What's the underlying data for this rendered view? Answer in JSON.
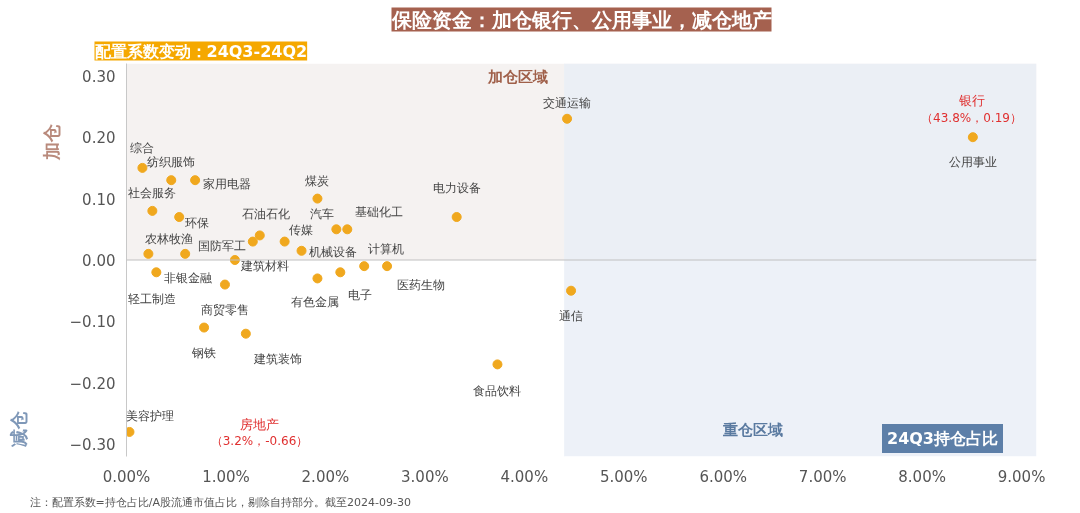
{
  "chart_data": {
    "type": "scatter",
    "title": "保险资金：加仓银行、公用事业，减仓地产",
    "xlabel": "24Q3持仓占比",
    "ylabel": "配置系数变动：24Q3-24Q2",
    "x": [
      0.16,
      0.45,
      0.69,
      0.26,
      0.53,
      1.27,
      1.34,
      1.92,
      1.59,
      1.76,
      2.11,
      2.22,
      2.39,
      2.62,
      0.22,
      0.59,
      1.09,
      0.3,
      2.15,
      1.92,
      0.99,
      0.78,
      1.2,
      0.03,
      3.32,
      4.43,
      4.47,
      3.73,
      8.51
    ],
    "values": [
      0.15,
      0.13,
      0.13,
      0.08,
      0.07,
      0.03,
      0.04,
      0.1,
      0.03,
      0.015,
      0.05,
      0.05,
      -0.01,
      -0.01,
      0.01,
      0.01,
      0.0,
      -0.02,
      -0.02,
      -0.03,
      -0.04,
      -0.11,
      -0.12,
      -0.28,
      0.07,
      0.23,
      -0.05,
      -0.17,
      0.2
    ],
    "color": "#f0a81e",
    "marker": "circle",
    "grid": false,
    "xlim": [
      0,
      9.15
    ],
    "ylim": [
      -0.32,
      0.32
    ],
    "xticks": [
      {
        "value": 0,
        "label": "0.00%"
      },
      {
        "value": 1,
        "label": "1.00%"
      },
      {
        "value": 2,
        "label": "2.00%"
      },
      {
        "value": 3,
        "label": "3.00%"
      },
      {
        "value": 4,
        "label": "4.00%"
      },
      {
        "value": 5,
        "label": "5.00%"
      },
      {
        "value": 6,
        "label": "6.00%"
      },
      {
        "value": 7,
        "label": "7.00%"
      },
      {
        "value": 8,
        "label": "8.00%"
      },
      {
        "value": 9,
        "label": "9.00%"
      }
    ],
    "yticks": [
      {
        "value": -0.3,
        "label": "−0.30"
      },
      {
        "value": -0.2,
        "label": "−0.20"
      },
      {
        "value": -0.1,
        "label": "−0.10"
      },
      {
        "value": 0,
        "label": "0.00"
      },
      {
        "value": 0.1,
        "label": "0.10"
      },
      {
        "value": 0.2,
        "label": "0.20"
      },
      {
        "value": 0.3,
        "label": "0.30"
      }
    ],
    "ref_lines": [
      {
        "axis": "y",
        "value": 0,
        "color": "#c0c0c0"
      }
    ],
    "bands": [
      {
        "axis": "y",
        "from": 0,
        "to": 0.32,
        "label": "加仓区域",
        "color": "#f3efee"
      },
      {
        "axis": "x",
        "from": 4.4,
        "to": 9.15,
        "label": "重仓区域",
        "color": "#e9eef6"
      }
    ],
    "annotations": [
      {
        "text": "综合",
        "x": 0.16,
        "y": 0.15
      },
      {
        "text": "纺织服饰",
        "x": 0.45,
        "y": 0.13
      },
      {
        "text": "家用电器",
        "x": 0.69,
        "y": 0.13
      },
      {
        "text": "社会服务",
        "x": 0.26,
        "y": 0.08
      },
      {
        "text": "环保",
        "x": 0.53,
        "y": 0.07
      },
      {
        "text": "国防军工",
        "x": 1.27,
        "y": 0.03
      },
      {
        "text": "石油石化",
        "x": 1.34,
        "y": 0.04
      },
      {
        "text": "煤炭",
        "x": 1.92,
        "y": 0.1
      },
      {
        "text": "传媒",
        "x": 1.59,
        "y": 0.03
      },
      {
        "text": "机械设备",
        "x": 1.76,
        "y": 0.015
      },
      {
        "text": "汽车",
        "x": 2.11,
        "y": 0.05
      },
      {
        "text": "基础化工",
        "x": 2.22,
        "y": 0.05
      },
      {
        "text": "计算机",
        "x": 2.39,
        "y": -0.01
      },
      {
        "text": "医药生物",
        "x": 2.62,
        "y": -0.01
      },
      {
        "text": "农林牧渔",
        "x": 0.22,
        "y": 0.01
      },
      {
        "text": "非银金融",
        "x": 0.59,
        "y": 0.01
      },
      {
        "text": "建筑材料",
        "x": 1.09,
        "y": 0.0
      },
      {
        "text": "轻工制造",
        "x": 0.3,
        "y": -0.02
      },
      {
        "text": "电子",
        "x": 2.15,
        "y": -0.02
      },
      {
        "text": "有色金属",
        "x": 1.92,
        "y": -0.03
      },
      {
        "text": "商贸零售",
        "x": 0.99,
        "y": -0.04
      },
      {
        "text": "钢铁",
        "x": 0.78,
        "y": -0.11
      },
      {
        "text": "建筑装饰",
        "x": 1.2,
        "y": -0.12
      },
      {
        "text": "美容护理",
        "x": 0.03,
        "y": -0.28
      },
      {
        "text": "电力设备",
        "x": 3.32,
        "y": 0.07
      },
      {
        "text": "交通运输",
        "x": 4.43,
        "y": 0.23
      },
      {
        "text": "通信",
        "x": 4.47,
        "y": -0.05
      },
      {
        "text": "食品饮料",
        "x": 3.73,
        "y": -0.17
      },
      {
        "text": "公用事业",
        "x": 8.51,
        "y": 0.2
      },
      "加仓",
      "减仓",
      "银行",
      "（43.8%，0.19）",
      "房地产",
      "（3.2%，-0.66）",
      "注：配置系数=持仓占比/A股流通市值占比，剔除自持部分。截至2024-09-30"
    ]
  }
}
